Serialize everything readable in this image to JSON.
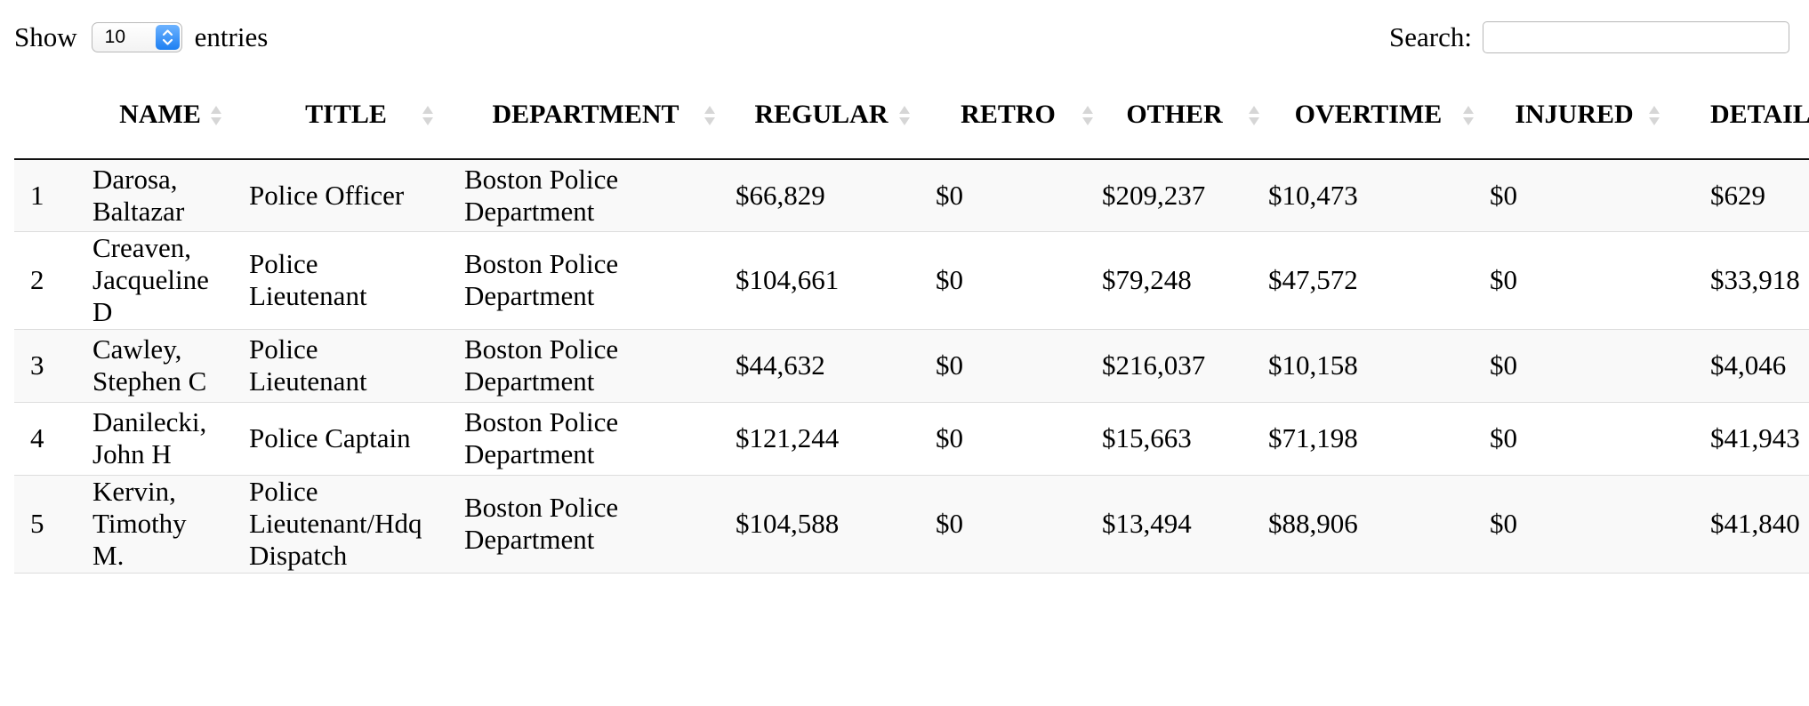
{
  "length_control": {
    "show_label": "Show",
    "selected_value": "10",
    "entries_label": "entries"
  },
  "search": {
    "label": "Search:",
    "value": "",
    "placeholder": ""
  },
  "table": {
    "headers": [
      "",
      "NAME",
      "TITLE",
      "DEPARTMENT",
      "REGULAR",
      "RETRO",
      "OTHER",
      "OVERTIME",
      "INJURED",
      "DETAIL"
    ],
    "rows": [
      {
        "index": "1",
        "name_lines": [
          "Darosa,",
          "Baltazar"
        ],
        "title_lines": [
          "Police Officer"
        ],
        "department_lines": [
          "Boston Police",
          "Department"
        ],
        "regular": "$66,829",
        "retro": "$0",
        "other": "$209,237",
        "overtime": "$10,473",
        "injured": "$0",
        "detail": "$629"
      },
      {
        "index": "2",
        "name_lines": [
          "Creaven,",
          "Jacqueline",
          "D"
        ],
        "title_lines": [
          "Police",
          "Lieutenant"
        ],
        "department_lines": [
          "Boston Police",
          "Department"
        ],
        "regular": "$104,661",
        "retro": "$0",
        "other": "$79,248",
        "overtime": "$47,572",
        "injured": "$0",
        "detail": "$33,918"
      },
      {
        "index": "3",
        "name_lines": [
          "Cawley,",
          "Stephen C"
        ],
        "title_lines": [
          "Police",
          "Lieutenant"
        ],
        "department_lines": [
          "Boston Police",
          "Department"
        ],
        "regular": "$44,632",
        "retro": "$0",
        "other": "$216,037",
        "overtime": "$10,158",
        "injured": "$0",
        "detail": "$4,046"
      },
      {
        "index": "4",
        "name_lines": [
          "Danilecki,",
          "John H"
        ],
        "title_lines": [
          "Police Captain"
        ],
        "department_lines": [
          "Boston Police",
          "Department"
        ],
        "regular": "$121,244",
        "retro": "$0",
        "other": "$15,663",
        "overtime": "$71,198",
        "injured": "$0",
        "detail": "$41,943"
      },
      {
        "index": "5",
        "name_lines": [
          "Kervin,",
          "Timothy",
          "M."
        ],
        "title_lines": [
          "Police",
          "Lieutenant/Hdq",
          "Dispatch"
        ],
        "department_lines": [
          "Boston Police",
          "Department"
        ],
        "regular": "$104,588",
        "retro": "$0",
        "other": "$13,494",
        "overtime": "$88,906",
        "injured": "$0",
        "detail": "$41,840"
      }
    ]
  },
  "colors": {
    "odd_row_bg": "#f9f9f9",
    "even_row_bg": "#ffffff",
    "row_border": "#dddddd",
    "header_border": "#111111",
    "select_arrow_blue": "#1d7ff2"
  }
}
